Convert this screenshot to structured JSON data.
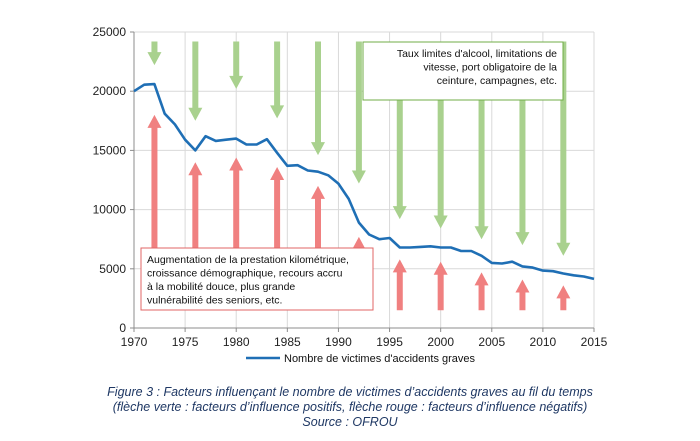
{
  "chart_data": {
    "type": "line",
    "x": [
      1970,
      1971,
      1972,
      1973,
      1974,
      1975,
      1976,
      1977,
      1978,
      1979,
      1980,
      1981,
      1982,
      1983,
      1984,
      1985,
      1986,
      1987,
      1988,
      1989,
      1990,
      1991,
      1992,
      1993,
      1994,
      1995,
      1996,
      1997,
      1998,
      1999,
      2000,
      2001,
      2002,
      2003,
      2004,
      2005,
      2006,
      2007,
      2008,
      2009,
      2010,
      2011,
      2012,
      2013,
      2014,
      2015
    ],
    "series": [
      {
        "name": "Nombre de victimes d'accidents graves",
        "color": "#1f6fb5",
        "values": [
          20000,
          20550,
          20600,
          18100,
          17200,
          15900,
          15000,
          16200,
          15800,
          15900,
          16000,
          15500,
          15500,
          15950,
          14800,
          13700,
          13750,
          13300,
          13200,
          12900,
          12200,
          10900,
          8900,
          7900,
          7500,
          7600,
          6800,
          6800,
          6850,
          6900,
          6800,
          6800,
          6500,
          6500,
          6100,
          5500,
          5450,
          5600,
          5200,
          5100,
          4850,
          4800,
          4600,
          4450,
          4350,
          4150
        ]
      }
    ],
    "xlim": [
      1970,
      2015
    ],
    "ylim": [
      0,
      25000
    ],
    "xticks": [
      "1970",
      "1975",
      "1980",
      "1985",
      "1990",
      "1995",
      "2000",
      "2005",
      "2010",
      "2015"
    ],
    "yticks": [
      "0",
      "5000",
      "10000",
      "15000",
      "20000",
      "25000"
    ],
    "grid": true,
    "legend_position": "bottom",
    "green_arrows": {
      "color": "#a9d18e",
      "items": [
        {
          "x": 1972,
          "from": 24200,
          "to": 22200
        },
        {
          "x": 1976,
          "from": 24200,
          "to": 17500
        },
        {
          "x": 1980,
          "from": 24200,
          "to": 20200
        },
        {
          "x": 1984,
          "from": 24200,
          "to": 17700
        },
        {
          "x": 1988,
          "from": 24200,
          "to": 14600
        },
        {
          "x": 1992,
          "from": 24200,
          "to": 12200
        },
        {
          "x": 1996,
          "from": 24200,
          "to": 9200
        },
        {
          "x": 2000,
          "from": 24200,
          "to": 8400
        },
        {
          "x": 2004,
          "from": 24200,
          "to": 7500
        },
        {
          "x": 2008,
          "from": 24200,
          "to": 7000
        },
        {
          "x": 2012,
          "from": 24200,
          "to": 6100
        }
      ]
    },
    "red_arrows": {
      "color": "#f08080",
      "items": [
        {
          "x": 1972,
          "from": 1500,
          "to": 18000
        },
        {
          "x": 1976,
          "from": 1500,
          "to": 14000
        },
        {
          "x": 1980,
          "from": 1500,
          "to": 14400
        },
        {
          "x": 1984,
          "from": 1500,
          "to": 13600
        },
        {
          "x": 1988,
          "from": 1500,
          "to": 12000
        },
        {
          "x": 1992,
          "from": 1500,
          "to": 7700
        },
        {
          "x": 1996,
          "from": 1500,
          "to": 5800
        },
        {
          "x": 2000,
          "from": 1500,
          "to": 5600
        },
        {
          "x": 2004,
          "from": 1500,
          "to": 4700
        },
        {
          "x": 2008,
          "from": 1500,
          "to": 4100
        },
        {
          "x": 2012,
          "from": 1500,
          "to": 3600
        }
      ]
    },
    "annotations": [
      {
        "id": "positive-factors",
        "lines": [
          "Taux limites d'alcool, limitations de",
          "vitesse, port obligatoire de la",
          "ceinture, campagnes, etc."
        ],
        "align": "right",
        "border_color": "#70ad47"
      },
      {
        "id": "negative-factors",
        "lines": [
          "Augmentation  de la prestation kilométrique,",
          "croissance démographique,  recours accru",
          "à la mobilité  douce,  plus grande",
          "vulnérabilité  des seniors, etc."
        ],
        "align": "left",
        "border_color": "#e06666"
      }
    ]
  },
  "caption": {
    "line1": "Figure 3 : Facteurs influençant le nombre de victimes d’accidents graves au fil du temps",
    "line2": "(flèche verte : facteurs d’influence positifs, flèche rouge : facteurs d’influence négatifs)",
    "line3": "Source : OFROU"
  }
}
